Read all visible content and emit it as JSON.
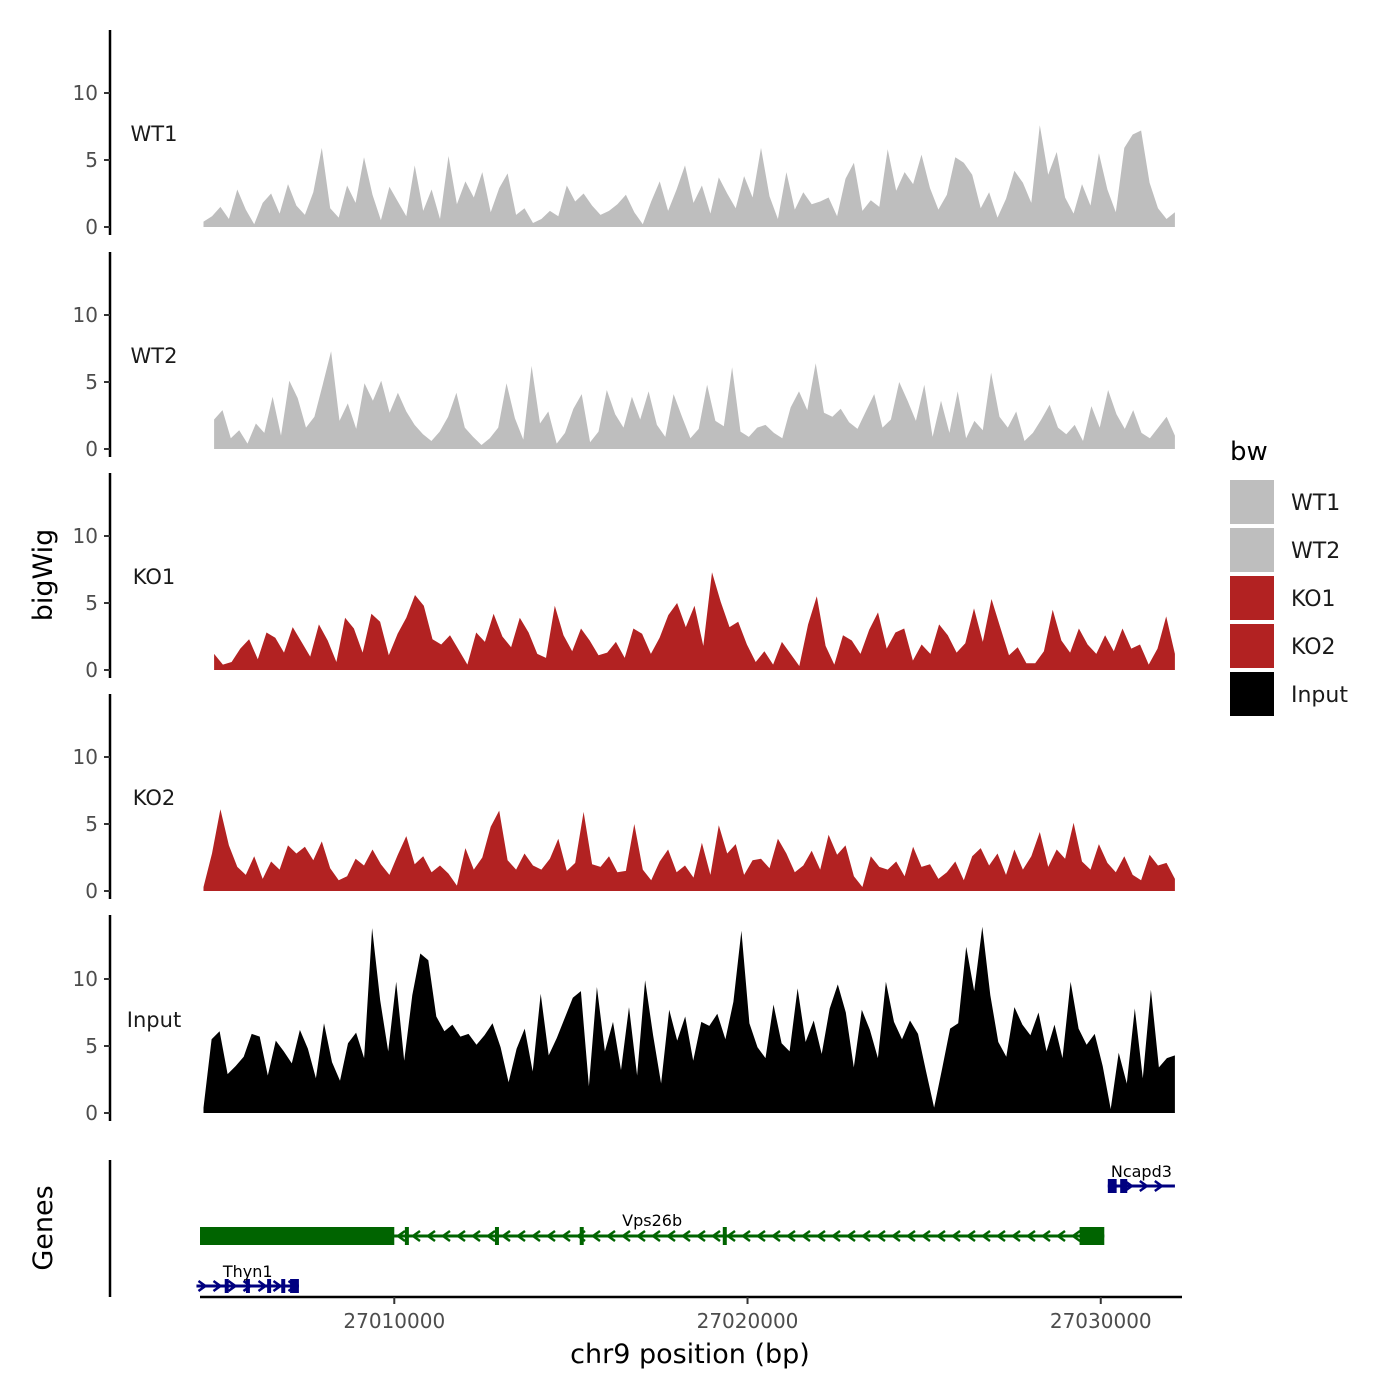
{
  "chart_data": {
    "type": "area",
    "subtype": "genome-track",
    "y_axis_title": "bigWig",
    "gene_axis_title": "Genes",
    "x_axis_title": "chr9 position (bp)",
    "x_range": [
      27004500,
      27032300
    ],
    "x_ticks": [
      "27010000",
      "27020000",
      "27030000"
    ],
    "x_tick_values": [
      27010000,
      27020000,
      27030000
    ],
    "y_range": [
      0,
      14.5
    ],
    "y_ticks": [
      "0",
      "5",
      "10"
    ],
    "y_tick_values": [
      0,
      5,
      10
    ],
    "legend": {
      "title": "bw",
      "entries": [
        {
          "label": "WT1",
          "color": "#BEBEBE"
        },
        {
          "label": "WT2",
          "color": "#BEBEBE"
        },
        {
          "label": "KO1",
          "color": "#B22222"
        },
        {
          "label": "KO2",
          "color": "#B22222"
        },
        {
          "label": "Input",
          "color": "#000000"
        }
      ]
    },
    "tracks": [
      {
        "label": "WT1",
        "color": "#BEBEBE",
        "start": 27004600,
        "end": 27032100,
        "values": [
          0.4,
          0.8,
          1.5,
          0.6,
          2.8,
          1.3,
          0.2,
          1.8,
          2.5,
          1.0,
          3.2,
          1.6,
          0.9,
          2.6,
          5.9,
          1.4,
          0.7,
          3.1,
          1.8,
          5.2,
          2.4,
          0.5,
          3.0,
          1.9,
          0.8,
          4.6,
          1.2,
          2.8,
          0.6,
          5.3,
          1.7,
          3.4,
          2.2,
          4.1,
          1.1,
          2.9,
          4.0,
          0.9,
          1.4,
          0.3,
          0.6,
          1.2,
          0.8,
          3.1,
          1.9,
          2.5,
          1.6,
          0.9,
          1.2,
          1.7,
          2.4,
          1.1,
          0.2,
          1.9,
          3.4,
          1.2,
          2.8,
          4.6,
          1.8,
          3.1,
          1.0,
          3.7,
          2.5,
          1.4,
          3.8,
          2.2,
          5.9,
          2.3,
          0.6,
          4.1,
          1.3,
          2.6,
          1.7,
          1.9,
          2.2,
          0.8,
          3.6,
          4.8,
          1.2,
          2.0,
          1.5,
          5.8,
          2.7,
          4.1,
          3.2,
          5.4,
          2.9,
          1.3,
          2.4,
          5.2,
          4.8,
          3.9,
          1.4,
          2.6,
          0.7,
          2.1,
          4.2,
          3.3,
          1.8,
          7.6,
          3.9,
          5.6,
          2.2,
          1.0,
          3.2,
          1.6,
          5.5,
          2.8,
          1.1,
          5.9,
          6.9,
          7.2,
          3.3,
          1.4,
          0.6,
          1.1
        ]
      },
      {
        "label": "WT2",
        "color": "#BEBEBE",
        "start": 27004900,
        "end": 27032100,
        "values": [
          2.2,
          2.9,
          0.8,
          1.4,
          0.4,
          1.9,
          1.2,
          3.9,
          1.0,
          5.1,
          3.8,
          1.6,
          2.4,
          4.8,
          7.3,
          2.1,
          3.4,
          1.5,
          4.9,
          3.6,
          5.1,
          2.7,
          4.2,
          2.8,
          1.8,
          1.1,
          0.6,
          1.3,
          2.4,
          4.2,
          1.6,
          0.9,
          0.3,
          0.8,
          1.6,
          4.9,
          2.3,
          0.7,
          6.2,
          1.9,
          2.8,
          0.4,
          1.2,
          3.0,
          4.1,
          0.5,
          1.3,
          4.4,
          2.6,
          1.6,
          3.9,
          2.2,
          4.3,
          1.8,
          0.9,
          4.1,
          2.4,
          0.8,
          1.5,
          4.8,
          2.1,
          1.7,
          6.1,
          1.3,
          0.9,
          1.6,
          1.8,
          1.2,
          0.8,
          3.1,
          4.3,
          2.9,
          6.4,
          2.7,
          2.4,
          3.0,
          2.0,
          1.5,
          2.8,
          4.1,
          1.6,
          2.2,
          5.0,
          3.6,
          2.1,
          4.8,
          0.9,
          3.6,
          1.2,
          4.3,
          0.8,
          2.1,
          1.4,
          5.7,
          2.4,
          1.6,
          2.8,
          0.6,
          1.2,
          2.2,
          3.3,
          1.6,
          1.1,
          1.8,
          0.6,
          3.2,
          1.6,
          4.4,
          2.6,
          1.5,
          2.9,
          1.2,
          0.8,
          1.6,
          2.4,
          1.0
        ]
      },
      {
        "label": "KO1",
        "color": "#B22222",
        "start": 27004900,
        "end": 27032100,
        "values": [
          1.2,
          0.4,
          0.6,
          1.6,
          2.3,
          0.8,
          2.8,
          2.4,
          1.3,
          3.2,
          2.1,
          1.0,
          3.4,
          2.2,
          0.6,
          3.9,
          3.1,
          1.3,
          4.2,
          3.6,
          1.1,
          2.7,
          3.9,
          5.6,
          4.8,
          2.3,
          1.9,
          2.6,
          1.5,
          0.4,
          2.8,
          2.1,
          4.2,
          2.5,
          1.7,
          3.9,
          2.8,
          1.2,
          0.9,
          4.8,
          2.6,
          1.4,
          3.1,
          2.2,
          1.1,
          1.3,
          2.1,
          0.9,
          3.1,
          2.7,
          1.2,
          2.4,
          4.1,
          5.0,
          3.2,
          4.8,
          1.8,
          7.3,
          5.1,
          3.2,
          3.6,
          1.9,
          0.6,
          1.4,
          0.4,
          2.1,
          1.2,
          0.3,
          3.4,
          5.5,
          1.8,
          0.4,
          2.6,
          2.2,
          1.2,
          3.0,
          4.3,
          1.6,
          2.8,
          3.1,
          0.7,
          1.9,
          1.2,
          3.4,
          2.6,
          1.3,
          2.0,
          4.6,
          2.1,
          5.3,
          3.2,
          1.1,
          1.7,
          0.5,
          0.5,
          1.4,
          4.5,
          2.2,
          1.3,
          3.1,
          1.9,
          1.2,
          2.6,
          1.4,
          3.1,
          1.6,
          1.9,
          0.4,
          1.6,
          4.0,
          1.2
        ]
      },
      {
        "label": "KO2",
        "color": "#B22222",
        "start": 27004600,
        "end": 27032100,
        "values": [
          0.3,
          2.8,
          6.1,
          3.4,
          1.8,
          1.2,
          2.6,
          0.9,
          2.2,
          1.6,
          3.4,
          2.8,
          3.3,
          2.3,
          3.7,
          1.7,
          0.8,
          1.1,
          2.4,
          1.9,
          3.1,
          2.0,
          1.2,
          2.7,
          4.1,
          2.0,
          2.6,
          1.4,
          1.9,
          1.3,
          0.4,
          3.2,
          1.6,
          2.5,
          4.8,
          6.0,
          2.3,
          1.6,
          2.8,
          1.9,
          1.6,
          2.4,
          3.9,
          1.5,
          2.1,
          5.9,
          2.0,
          1.8,
          2.6,
          1.4,
          1.5,
          5.0,
          1.6,
          0.8,
          2.2,
          3.1,
          1.4,
          1.9,
          1.0,
          3.6,
          1.2,
          4.9,
          2.8,
          3.5,
          1.2,
          2.3,
          2.4,
          1.7,
          3.9,
          2.8,
          1.4,
          1.9,
          3.0,
          1.6,
          4.2,
          2.7,
          3.4,
          1.1,
          0.3,
          2.6,
          1.8,
          1.6,
          2.2,
          1.1,
          3.3,
          1.8,
          2.0,
          0.9,
          1.4,
          2.2,
          0.8,
          2.6,
          3.2,
          1.9,
          2.8,
          1.2,
          3.1,
          1.6,
          2.6,
          4.4,
          1.8,
          3.1,
          2.4,
          5.1,
          2.2,
          1.6,
          3.5,
          2.1,
          1.4,
          2.6,
          1.2,
          0.8,
          2.7,
          1.9,
          2.1,
          0.9
        ]
      },
      {
        "label": "Input",
        "color": "#000000",
        "start": 27004600,
        "end": 27032100,
        "values": [
          0.4,
          5.5,
          6.1,
          2.9,
          3.5,
          4.2,
          5.9,
          5.7,
          2.8,
          5.4,
          4.6,
          3.7,
          6.2,
          4.8,
          2.6,
          6.7,
          3.8,
          2.4,
          5.2,
          6.0,
          4.1,
          13.8,
          8.4,
          4.6,
          9.8,
          3.9,
          8.8,
          11.9,
          11.4,
          7.2,
          6.1,
          6.6,
          5.7,
          5.9,
          5.1,
          5.8,
          6.7,
          4.9,
          2.3,
          4.8,
          6.3,
          3.1,
          8.9,
          4.3,
          5.6,
          7.1,
          8.6,
          9.1,
          2.0,
          9.4,
          4.6,
          6.8,
          3.2,
          7.9,
          2.8,
          9.9,
          5.8,
          2.2,
          7.7,
          5.4,
          7.2,
          3.9,
          6.8,
          6.5,
          7.4,
          5.5,
          8.3,
          13.6,
          6.7,
          4.9,
          4.1,
          8.1,
          5.2,
          4.6,
          9.3,
          5.3,
          6.9,
          4.4,
          7.8,
          9.6,
          7.5,
          3.4,
          7.7,
          6.2,
          4.1,
          9.8,
          6.8,
          5.5,
          6.9,
          5.9,
          3.1,
          0.4,
          3.3,
          6.3,
          6.7,
          12.4,
          9.1,
          13.9,
          8.8,
          5.3,
          4.2,
          7.9,
          6.6,
          5.8,
          7.5,
          4.6,
          6.6,
          4.1,
          9.8,
          6.3,
          5.1,
          5.9,
          3.5,
          0.3,
          4.5,
          2.2,
          7.8,
          2.6,
          9.2,
          3.4,
          4.1,
          4.3
        ]
      }
    ],
    "genes": [
      {
        "name": "Ncapd3",
        "color": "#000080",
        "start": 27030200,
        "end": 27032100,
        "strand": "+",
        "row": 1,
        "exons": [
          [
            27030200,
            27030450
          ],
          [
            27030550,
            27030750
          ]
        ]
      },
      {
        "name": "Vps26b",
        "color": "#006400",
        "start": 27004500,
        "end": 27030100,
        "strand": "-",
        "row": 2,
        "exons": [
          [
            27004500,
            27010000
          ],
          [
            27010300,
            27010380
          ],
          [
            27012850,
            27012950
          ],
          [
            27015250,
            27015350
          ],
          [
            27019300,
            27019400
          ],
          [
            27029400,
            27030100
          ]
        ]
      },
      {
        "name": "Thyn1",
        "color": "#000080",
        "start": 27004400,
        "end": 27007300,
        "strand": "+",
        "row": 3,
        "exons": [
          [
            27005200,
            27005260
          ],
          [
            27005800,
            27005860
          ],
          [
            27006400,
            27006460
          ],
          [
            27006800,
            27006870
          ],
          [
            27007050,
            27007300
          ]
        ]
      }
    ]
  }
}
